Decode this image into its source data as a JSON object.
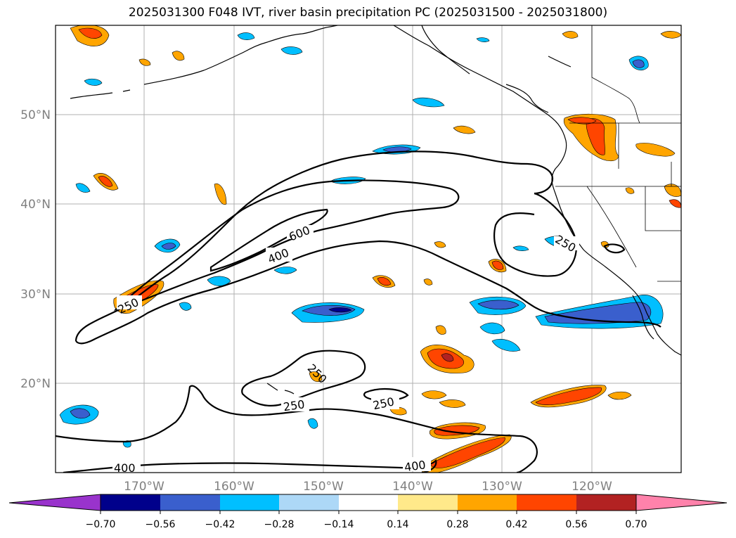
{
  "title": "2025031300 F048 IVT, river basin precipitation PC (2025031500 - 2025031800)",
  "map": {
    "lat_labels": [
      "50°N",
      "40°N",
      "30°N",
      "20°N"
    ],
    "lon_labels": [
      "170°W",
      "160°W",
      "150°W",
      "140°W",
      "130°W",
      "120°W"
    ],
    "contour_labels": [
      "600",
      "400",
      "250",
      "250",
      "250",
      "250",
      "250",
      "400",
      "400"
    ]
  },
  "colorbar": {
    "colors": [
      "#9933cc",
      "#00008b",
      "#3a5fcd",
      "#00bfff",
      "#add8f7",
      "#ffffff",
      "#ffe98a",
      "#ffa500",
      "#ff4500",
      "#b22222",
      "#ff82ab"
    ],
    "tick_labels": [
      "−0.70",
      "−0.56",
      "−0.42",
      "−0.28",
      "−0.14",
      "0.14",
      "0.28",
      "0.42",
      "0.56",
      "0.70"
    ]
  }
}
